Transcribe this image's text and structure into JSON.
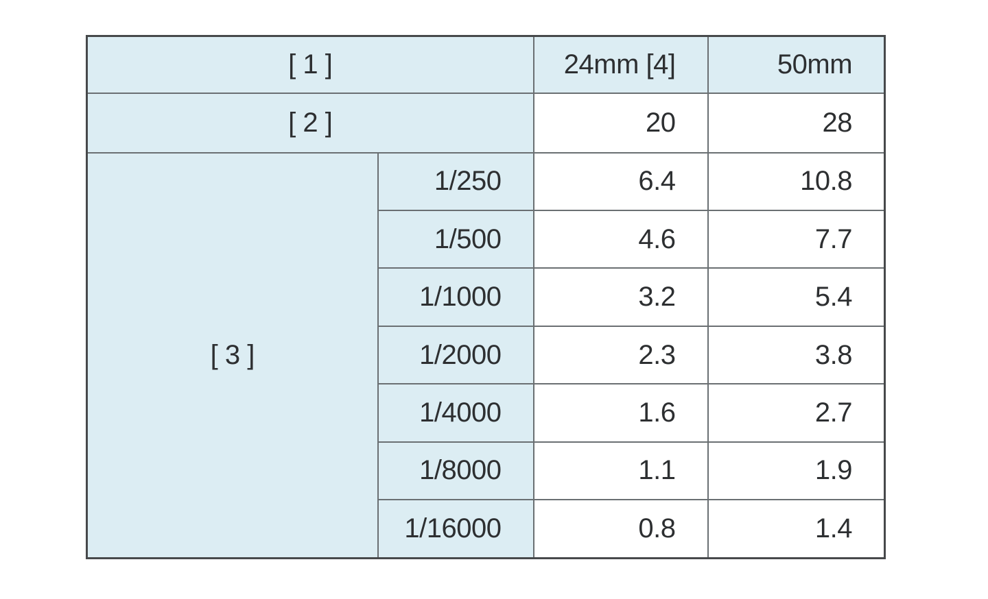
{
  "table": {
    "header_row": {
      "merged_label": "[ 1 ]",
      "col_a": "24mm [4]",
      "col_b": "50mm"
    },
    "second_row": {
      "merged_label": "[ 2 ]",
      "val_a": "20",
      "val_b": "28"
    },
    "group_label": "[ 3 ]",
    "rows": [
      {
        "speed": "1/250",
        "val_a": "6.4",
        "val_b": "10.8"
      },
      {
        "speed": "1/500",
        "val_a": "4.6",
        "val_b": "7.7"
      },
      {
        "speed": "1/1000",
        "val_a": "3.2",
        "val_b": "5.4"
      },
      {
        "speed": "1/2000",
        "val_a": "2.3",
        "val_b": "3.8"
      },
      {
        "speed": "1/4000",
        "val_a": "1.6",
        "val_b": "2.7"
      },
      {
        "speed": "1/8000",
        "val_a": "1.1",
        "val_b": "1.9"
      },
      {
        "speed": "1/16000",
        "val_a": "0.8",
        "val_b": "1.4"
      }
    ],
    "colors": {
      "header_fill": "#dcedf3",
      "border_inner": "#6a6f72",
      "border_outer": "#47494b",
      "text": "#2d2f31"
    }
  }
}
